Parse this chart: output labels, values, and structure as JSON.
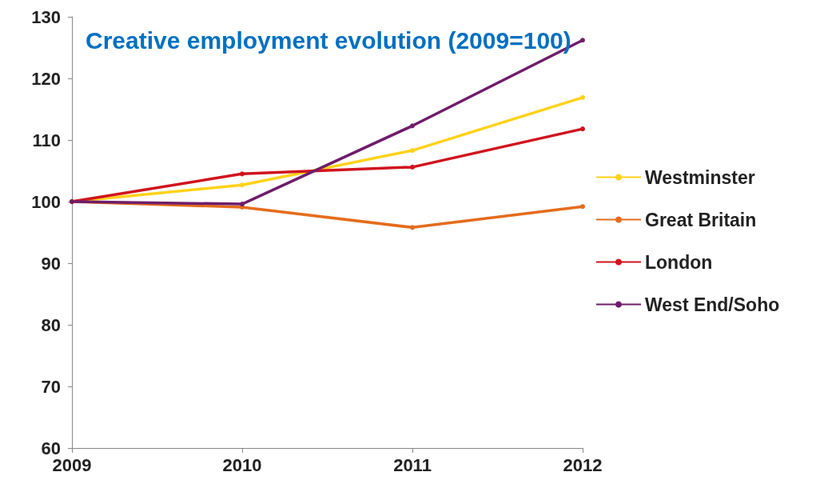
{
  "chart_data": {
    "type": "line",
    "title": "Creative employment evolution (2009=100)",
    "categories": [
      "2009",
      "2010",
      "2011",
      "2012"
    ],
    "series": [
      {
        "name": "Westminster",
        "color": "#ffd21a",
        "values": [
          100,
          102.7,
          108.3,
          116.9
        ]
      },
      {
        "name": "Great Britain",
        "color": "#e46c1c",
        "values": [
          100,
          99.1,
          95.8,
          99.2
        ]
      },
      {
        "name": "London",
        "color": "#d0141e",
        "values": [
          100,
          104.5,
          105.6,
          111.8
        ]
      },
      {
        "name": "West End/Soho",
        "color": "#6e1d6a",
        "values": [
          100,
          99.6,
          112.3,
          126.2
        ]
      }
    ],
    "ylim": [
      60,
      130
    ],
    "yticks": [
      60,
      70,
      80,
      90,
      100,
      110,
      120,
      130
    ],
    "grid": false,
    "legend": "right",
    "marker": "circle"
  }
}
